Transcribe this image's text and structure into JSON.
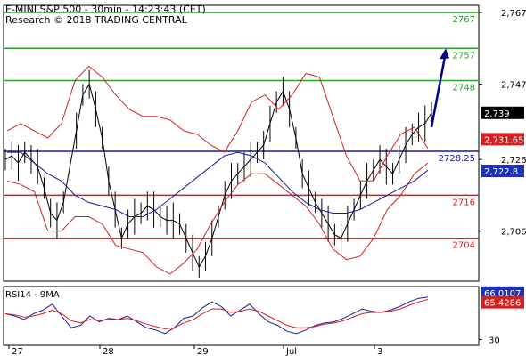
{
  "chart_data": [
    {
      "type": "line",
      "title": "E-MINI S&P 500 - 30min - 14:23:43 (CET)",
      "subtitle": "Research © 2018 TRADING CENTRAL",
      "x_labels": [
        "27",
        "28",
        "29",
        "Jul",
        "3"
      ],
      "ylim": [
        2692,
        2769
      ],
      "y_ticks": [
        {
          "value": 2767,
          "label": "2,767"
        },
        {
          "value": 2747,
          "label": "2,747"
        },
        {
          "value": 2726,
          "label": "2,726"
        },
        {
          "value": 2706,
          "label": "2,706"
        }
      ],
      "levels": [
        {
          "value": 2767,
          "label": "2767",
          "color": "#2ca02c"
        },
        {
          "value": 2757,
          "label": "2757",
          "color": "#2ca02c"
        },
        {
          "value": 2748,
          "label": "2748",
          "color": "#2ca02c"
        },
        {
          "value": 2728.25,
          "label": "2728.25",
          "color": "#1a1a99"
        },
        {
          "value": 2716,
          "label": "2716",
          "color": "#d42020"
        },
        {
          "value": 2704,
          "label": "2704",
          "color": "#d42020"
        }
      ],
      "price_tags": [
        {
          "value": 2739,
          "label": "2,739",
          "bg": "#000000",
          "fg": "#ffffff"
        },
        {
          "value": 2731.65,
          "label": "2,731.65",
          "bg": "#d42020",
          "fg": "#ffffff"
        },
        {
          "value": 2722.8,
          "label": "2,722.8",
          "bg": "#2030b0",
          "fg": "#ffffff"
        }
      ],
      "price_series": [
        2726,
        2727,
        2725,
        2728,
        2726,
        2724,
        2718,
        2711,
        2709,
        2714,
        2724,
        2734,
        2744,
        2747,
        2740,
        2732,
        2720,
        2712,
        2704,
        2708,
        2710,
        2711,
        2713,
        2712,
        2710,
        2709,
        2709,
        2708,
        2704,
        2700,
        2696,
        2699,
        2704,
        2710,
        2716,
        2720,
        2722,
        2724,
        2726,
        2728,
        2730,
        2736,
        2742,
        2745,
        2740,
        2732,
        2722,
        2718,
        2714,
        2711,
        2708,
        2705,
        2704,
        2708,
        2712,
        2716,
        2720,
        2723,
        2726,
        2724,
        2722,
        2726,
        2730,
        2733,
        2735,
        2736,
        2739
      ],
      "price_color": "#000000",
      "bollinger": {
        "color": "#d42020",
        "upper": [
          2734,
          2736,
          2734,
          2732,
          2736,
          2748,
          2752,
          2749,
          2744,
          2740,
          2738,
          2738,
          2737,
          2734,
          2733,
          2730,
          2728,
          2734,
          2742,
          2744,
          2740,
          2744,
          2750,
          2749,
          2738,
          2727,
          2720,
          2720,
          2727,
          2733,
          2735,
          2729
        ],
        "lower": [
          2720,
          2719,
          2717,
          2706,
          2706,
          2710,
          2710,
          2708,
          2702,
          2701,
          2700,
          2696,
          2694,
          2697,
          2701,
          2708,
          2714,
          2719,
          2722,
          2722,
          2719,
          2716,
          2713,
          2708,
          2701,
          2698,
          2699,
          2704,
          2712,
          2716,
          2722,
          2725
        ]
      },
      "moving_average": {
        "color": "#1a1a99",
        "values": [
          2728,
          2728,
          2725,
          2722,
          2720,
          2716,
          2714,
          2713,
          2712,
          2710,
          2710,
          2712,
          2715,
          2718,
          2721,
          2724,
          2727,
          2728,
          2727,
          2725,
          2721,
          2717,
          2714,
          2712,
          2711,
          2711,
          2712,
          2714,
          2716,
          2718,
          2720,
          2723
        ]
      },
      "signal_arrow": {
        "from": 2735,
        "to": 2756,
        "color": "#00008b"
      }
    },
    {
      "type": "line",
      "title": "RSI14 - 9MA",
      "ylim": [
        25,
        75
      ],
      "y_ticks": [
        {
          "value": 30,
          "label": "30"
        }
      ],
      "series": [
        {
          "name": "RSI14",
          "color": "#1a1a99",
          "values": [
            52,
            50,
            47,
            52,
            55,
            60,
            50,
            40,
            42,
            50,
            45,
            48,
            47,
            50,
            45,
            40,
            38,
            35,
            40,
            48,
            50,
            57,
            62,
            58,
            50,
            55,
            60,
            52,
            45,
            42,
            37,
            35,
            38,
            42,
            44,
            45,
            48,
            52,
            56,
            54,
            53,
            55,
            58,
            62,
            65,
            66
          ]
        },
        {
          "name": "9MA",
          "color": "#d42020",
          "values": [
            52,
            51,
            49,
            50,
            52,
            55,
            52,
            46,
            44,
            47,
            46,
            47,
            47,
            48,
            46,
            43,
            41,
            39,
            40,
            44,
            47,
            52,
            56,
            56,
            53,
            54,
            56,
            54,
            50,
            46,
            42,
            40,
            40,
            41,
            43,
            44,
            46,
            49,
            52,
            53,
            53,
            54,
            56,
            59,
            62,
            64
          ]
        }
      ],
      "price_tags": [
        {
          "value": 66.0107,
          "label": "66.0107",
          "bg": "#2030b0",
          "fg": "#ffffff"
        },
        {
          "value": 65.4286,
          "label": "65.4286",
          "bg": "#d42020",
          "fg": "#ffffff"
        }
      ]
    }
  ]
}
